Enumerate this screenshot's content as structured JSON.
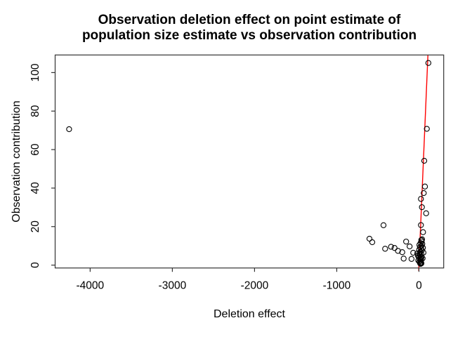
{
  "chart_data": {
    "type": "scatter",
    "title_lines": [
      "Observation deletion effect on point estimate of",
      "population size estimate vs observation contribution"
    ],
    "xlabel": "Deletion effect",
    "ylabel": "Observation contribution",
    "x_ticks": [
      -4000,
      -3000,
      -2000,
      -1000,
      0
    ],
    "y_ticks": [
      0,
      20,
      40,
      60,
      80,
      100
    ],
    "xlim": [
      -4426,
      301
    ],
    "ylim": [
      -1.5,
      109.15
    ],
    "grid": false,
    "legend": null,
    "point_style": {
      "shape": "open-circle",
      "color": "#000000"
    },
    "fit_line": {
      "slope": 1,
      "intercept": 0,
      "color": "#FF0000"
    },
    "colors": {
      "axis": "#333333",
      "background": "#FFFFFF"
    },
    "points": [
      [
        -4256,
        70.6
      ],
      [
        115,
        105
      ],
      [
        96,
        70.8
      ],
      [
        64,
        54.2
      ],
      [
        73,
        40.8
      ],
      [
        58,
        37.4
      ],
      [
        24,
        34.4
      ],
      [
        36,
        30.1
      ],
      [
        87,
        26.9
      ],
      [
        24,
        20.8
      ],
      [
        50,
        17.1
      ],
      [
        38,
        13.4
      ],
      [
        -602,
        13.7
      ],
      [
        -568,
        11.9
      ],
      [
        -431,
        20.7
      ],
      [
        -412,
        8.5
      ],
      [
        -340,
        9.5
      ],
      [
        -297,
        8.9
      ],
      [
        -255,
        7.4
      ],
      [
        -203,
        6.7
      ],
      [
        -186,
        3.4
      ],
      [
        -156,
        12.2
      ],
      [
        -113,
        9.7
      ],
      [
        -90,
        3.2
      ],
      [
        -70,
        6.4
      ],
      [
        20,
        11.5
      ],
      [
        5,
        10.5
      ],
      [
        30,
        10
      ],
      [
        12,
        9.3
      ],
      [
        25,
        8.6
      ],
      [
        3,
        8
      ],
      [
        35,
        7.7
      ],
      [
        18,
        7
      ],
      [
        8,
        6.3
      ],
      [
        28,
        5.8
      ],
      [
        15,
        5.2
      ],
      [
        2,
        4.6
      ],
      [
        32,
        4.2
      ],
      [
        22,
        3.7
      ],
      [
        10,
        3.2
      ],
      [
        27,
        2.7
      ],
      [
        17,
        2.2
      ],
      [
        5,
        1.8
      ],
      [
        24,
        1.4
      ],
      [
        13,
        1
      ],
      [
        30,
        0.9
      ],
      [
        20,
        0.6
      ],
      [
        -12,
        4.8
      ],
      [
        -8,
        2.4
      ],
      [
        45,
        3.5
      ],
      [
        -20,
        6
      ],
      [
        55,
        6.5
      ],
      [
        48,
        9
      ],
      [
        33,
        12.3
      ],
      [
        28,
        13
      ],
      [
        40,
        11
      ]
    ]
  }
}
